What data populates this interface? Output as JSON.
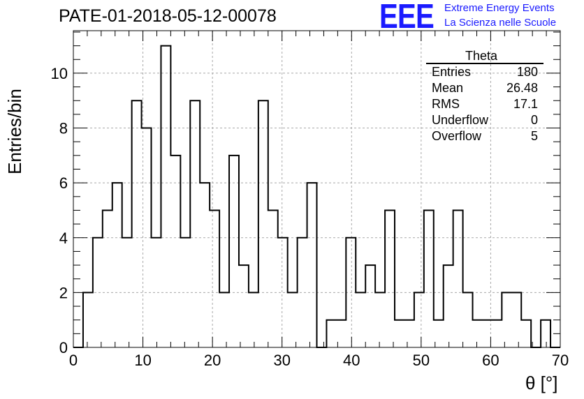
{
  "chart_data": {
    "type": "bar",
    "title": "PATE-01-2018-05-12-00078",
    "xlabel": "θ [°]",
    "ylabel": "Entries/bin",
    "xlim": [
      0,
      70
    ],
    "ylim": [
      0,
      11.55
    ],
    "bin_width": 1.4,
    "x_ticks": [
      0,
      10,
      20,
      30,
      40,
      50,
      60,
      70
    ],
    "y_ticks": [
      0,
      2,
      4,
      6,
      8,
      10
    ],
    "grid": true,
    "values": [
      0,
      2,
      4,
      5,
      6,
      4,
      9,
      8,
      4,
      11,
      7,
      4,
      9,
      6,
      5,
      2,
      7,
      3,
      2,
      9,
      5,
      4,
      2,
      4,
      6,
      0,
      1,
      1,
      4,
      2,
      3,
      2,
      5,
      1,
      1,
      2,
      5,
      1,
      3,
      5,
      2,
      1,
      1,
      1,
      2,
      2,
      1,
      0,
      1,
      0
    ]
  },
  "stats_box": {
    "title": "Theta",
    "rows": [
      {
        "label": "Entries",
        "value": "180"
      },
      {
        "label": "Mean",
        "value": "26.48"
      },
      {
        "label": "RMS",
        "value": "17.1"
      },
      {
        "label": "Underflow",
        "value": "0"
      },
      {
        "label": "Overflow",
        "value": "5"
      }
    ]
  },
  "logo": {
    "text": "EEE",
    "line1": "Extreme Energy Events",
    "line2": "La Scienza nelle Scuole",
    "color": "#1a1aff"
  }
}
